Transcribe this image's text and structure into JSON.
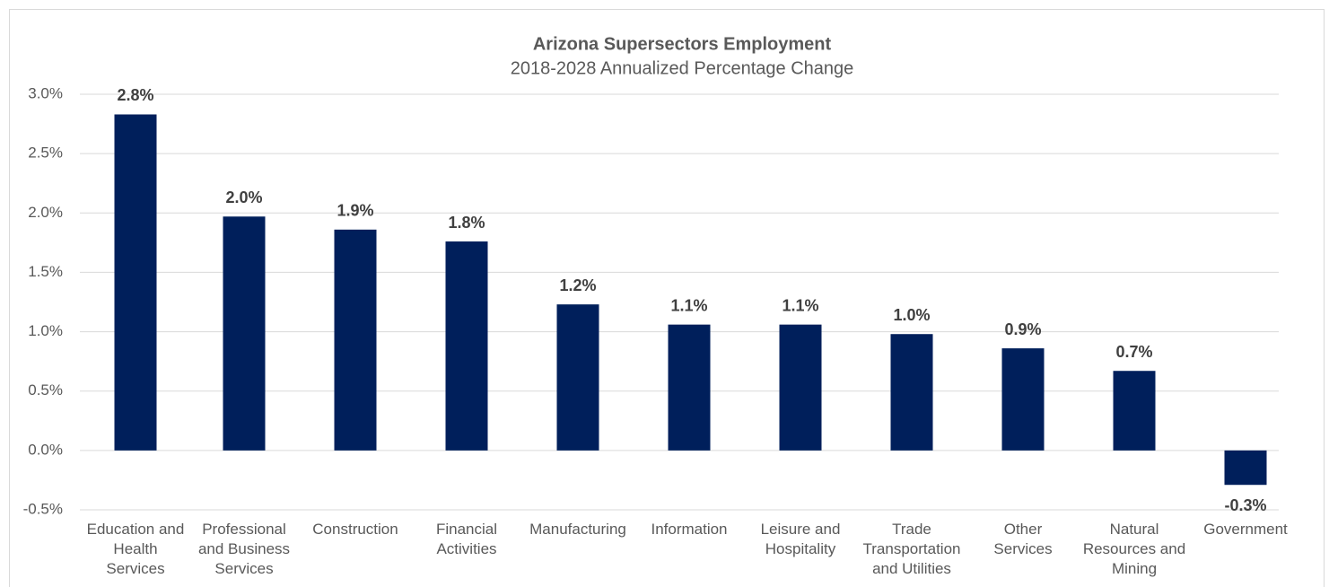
{
  "chart_data": {
    "type": "bar",
    "title": "Arizona Supersectors Employment",
    "subtitle": "2018-2028 Annualized  Percentage Change",
    "categories": [
      "Education and Health Services",
      "Professional and Business Services",
      "Construction",
      "Financial Activities",
      "Manufacturing",
      "Information",
      "Leisure and Hospitality",
      "Trade Transportation and Utilities",
      "Other Services",
      "Natural Resources and Mining",
      "Government"
    ],
    "values": [
      2.83,
      1.97,
      1.86,
      1.76,
      1.23,
      1.06,
      1.06,
      0.98,
      0.86,
      0.67,
      -0.29
    ],
    "value_labels": [
      "2.8%",
      "2.0%",
      "1.9%",
      "1.8%",
      "1.2%",
      "1.1%",
      "1.1%",
      "1.0%",
      "0.9%",
      "0.7%",
      "-0.3%"
    ],
    "color": "#001f5b",
    "ylim": [
      -0.5,
      3.0
    ],
    "yticks": [
      {
        "value": -0.5,
        "label": "-0.5%"
      },
      {
        "value": 0,
        "label": "0.0%"
      },
      {
        "value": 0.5,
        "label": "0.5%"
      },
      {
        "value": 1.0,
        "label": "1.0%"
      },
      {
        "value": 1.5,
        "label": "1.5%"
      },
      {
        "value": 2.0,
        "label": "2.0%"
      },
      {
        "value": 2.5,
        "label": "2.5%"
      },
      {
        "value": 3.0,
        "label": "3.0%"
      }
    ],
    "grid": true
  }
}
